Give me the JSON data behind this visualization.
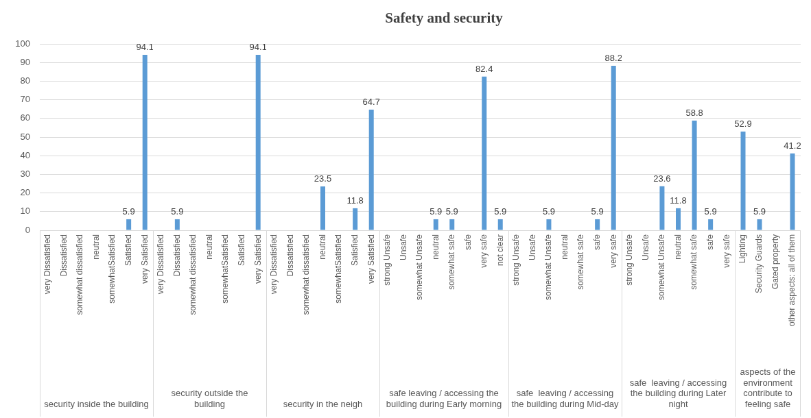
{
  "chart_data": [
    {
      "type": "bar",
      "xlabel": "security inside the building",
      "categories": [
        "very Dissatisfied",
        "Dissatisfied",
        "somewhat dissatisfied",
        "neutral",
        "somewhatSatisfied",
        "Satisfied",
        "very Satisfied"
      ],
      "values": [
        null,
        null,
        null,
        null,
        null,
        5.9,
        94.1
      ],
      "color": "#5b9bd5",
      "ylim": [
        0,
        100
      ],
      "yticks": [
        0,
        10,
        20,
        30,
        40,
        50,
        60,
        70,
        80,
        90,
        100
      ],
      "grid": "y",
      "data_labels": true
    },
    {
      "type": "bar",
      "xlabel": "security outside the building",
      "categories": [
        "very Dissatisfied",
        "Dissatisfied",
        "somewhat dissatisfied",
        "neutral",
        "somewhatSatisfied",
        "Satisfied",
        "very Satisfied"
      ],
      "values": [
        null,
        5.9,
        null,
        null,
        null,
        null,
        94.1
      ],
      "color": "#5b9bd5",
      "ylim": [
        0,
        100
      ],
      "yticks": [
        0,
        10,
        20,
        30,
        40,
        50,
        60,
        70,
        80,
        90,
        100
      ],
      "grid": "y",
      "data_labels": true,
      "tick_labels": "x"
    },
    {
      "type": "bar",
      "xlabel": "security in the neigh",
      "categories": [
        "very Dissatisfied",
        "Dissatisfied",
        "somewhat dissatisfied",
        "neutral",
        "somewhatSatisfied",
        "Satisfied",
        "very Satisfied"
      ],
      "values": [
        null,
        null,
        null,
        23.5,
        null,
        11.8,
        64.7
      ],
      "color": "#5b9bd5",
      "ylim": [
        0,
        100
      ],
      "yticks": [
        0,
        10,
        20,
        30,
        40,
        50,
        60,
        70,
        80,
        90,
        100
      ],
      "grid": "y",
      "data_labels": true,
      "tick_labels": "x"
    },
    {
      "type": "bar",
      "title": "Safety and security",
      "xlabel": "safe leaving / accessing the building during Early morning",
      "categories": [
        "strong Unsafe",
        "Unsafe",
        "somewhat Unsafe",
        "neutral",
        "somewhat safe",
        "safe",
        "very safe",
        "not clear"
      ],
      "values": [
        null,
        null,
        null,
        5.9,
        5.9,
        null,
        82.4,
        5.9
      ],
      "color": "#5b9bd5",
      "ylim": [
        0,
        100
      ],
      "yticks": [
        0,
        10,
        20,
        30,
        40,
        50,
        60,
        70,
        80,
        90,
        100
      ],
      "grid": "y",
      "data_labels": true,
      "tick_labels": "x"
    },
    {
      "type": "bar",
      "xlabel": "safe  leaving / accessing the building during Mid-day",
      "categories": [
        "strong Unsafe",
        "Unsafe",
        "somewhat Unsafe",
        "neutral",
        "somewhat safe",
        "safe",
        "very safe"
      ],
      "values": [
        null,
        null,
        5.9,
        null,
        null,
        5.9,
        88.2
      ],
      "color": "#5b9bd5",
      "ylim": [
        0,
        100
      ],
      "yticks": [
        0,
        10,
        20,
        30,
        40,
        50,
        60,
        70,
        80,
        90,
        100
      ],
      "grid": "y",
      "data_labels": true,
      "tick_labels": "x"
    },
    {
      "type": "bar",
      "xlabel": "safe  leaving / accessing the building during Later night",
      "categories": [
        "strong Unsafe",
        "Unsafe",
        "somewhat Unsafe",
        "neutral",
        "somewhat safe",
        "safe",
        "very safe"
      ],
      "values": [
        null,
        null,
        23.6,
        11.8,
        58.8,
        5.9,
        null
      ],
      "color": "#5b9bd5",
      "ylim": [
        0,
        100
      ],
      "yticks": [
        0,
        10,
        20,
        30,
        40,
        50,
        60,
        70,
        80,
        90,
        100
      ],
      "grid": "y",
      "data_labels": true,
      "tick_labels": "x"
    },
    {
      "type": "bar",
      "xlabel": "aspects of the environment contribute to feeling safe",
      "categories": [
        "Lighting",
        "Security Guards",
        "Gated property",
        "other aspects: all of them"
      ],
      "values": [
        52.9,
        5.9,
        null,
        41.2
      ],
      "color": "#5b9bd5",
      "ylim": [
        0,
        100
      ],
      "yticks": [
        0,
        10,
        20,
        30,
        40,
        50,
        60,
        70,
        80,
        90,
        100
      ],
      "grid": "y",
      "data_labels": true,
      "tick_labels": "x"
    }
  ]
}
